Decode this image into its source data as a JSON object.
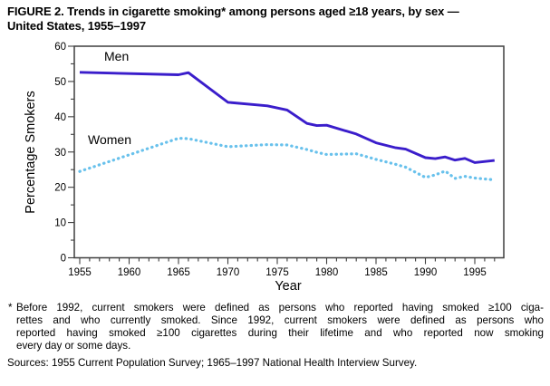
{
  "figure": {
    "title_lines": [
      "FIGURE 2. Trends in cigarette smoking* among persons aged ≥18 years, by sex —",
      "United States, 1955–1997"
    ],
    "footnote_marker": "*",
    "footnote_lines": [
      "Before 1992, current smokers were defined as persons who reported having smoked ≥100 ciga-",
      "rettes and who currently smoked. Since 1992, current smokers were defined as persons who",
      "reported having smoked ≥100 cigarettes during their lifetime and who reported now smoking",
      "every day or some days."
    ],
    "sources": "Sources: 1955 Current Population Survey; 1965–1997 National Health Interview Survey."
  },
  "chart_data": {
    "type": "line",
    "title": "Trends in cigarette smoking among persons aged ≥18 years, by sex — United States, 1955–1997",
    "xlabel": "Year",
    "ylabel": "Percentage Smokers",
    "xlim": [
      1955,
      1997
    ],
    "ylim": [
      0,
      60
    ],
    "grid": false,
    "legend_position": "inline-labels",
    "x_major_ticks": [
      1955,
      1960,
      1965,
      1970,
      1975,
      1980,
      1985,
      1990,
      1995
    ],
    "x_tick_labels": [
      "1955",
      "1960",
      "1965",
      "1970",
      "1975",
      "1980",
      "1985",
      "1990",
      "1995"
    ],
    "x_minor_tick_step": 1,
    "y_major_ticks": [
      0,
      10,
      20,
      30,
      40,
      50,
      60
    ],
    "y_tick_labels": [
      "0",
      "10",
      "20",
      "30",
      "40",
      "50",
      "60"
    ],
    "y_minor_tick_step": 5,
    "axis_color": "#3f3f3f",
    "x": [
      1955,
      1965,
      1966,
      1970,
      1974,
      1976,
      1978,
      1979,
      1980,
      1983,
      1985,
      1987,
      1988,
      1990,
      1991,
      1992,
      1993,
      1994,
      1995,
      1997
    ],
    "series": [
      {
        "name": "Men",
        "style": "solid",
        "color": "#3a1dcb",
        "values": [
          52.6,
          51.9,
          52.5,
          44.1,
          43.1,
          41.9,
          38.1,
          37.5,
          37.6,
          35.1,
          32.6,
          31.2,
          30.8,
          28.4,
          28.1,
          28.6,
          27.7,
          28.2,
          27.0,
          27.6
        ]
      },
      {
        "name": "Women",
        "style": "dotted",
        "color": "#68c1ec",
        "values": [
          24.5,
          33.9,
          33.8,
          31.5,
          32.1,
          32.0,
          30.7,
          29.9,
          29.3,
          29.5,
          27.9,
          26.5,
          25.7,
          22.8,
          23.5,
          24.6,
          22.5,
          23.1,
          22.6,
          22.1
        ]
      }
    ]
  }
}
